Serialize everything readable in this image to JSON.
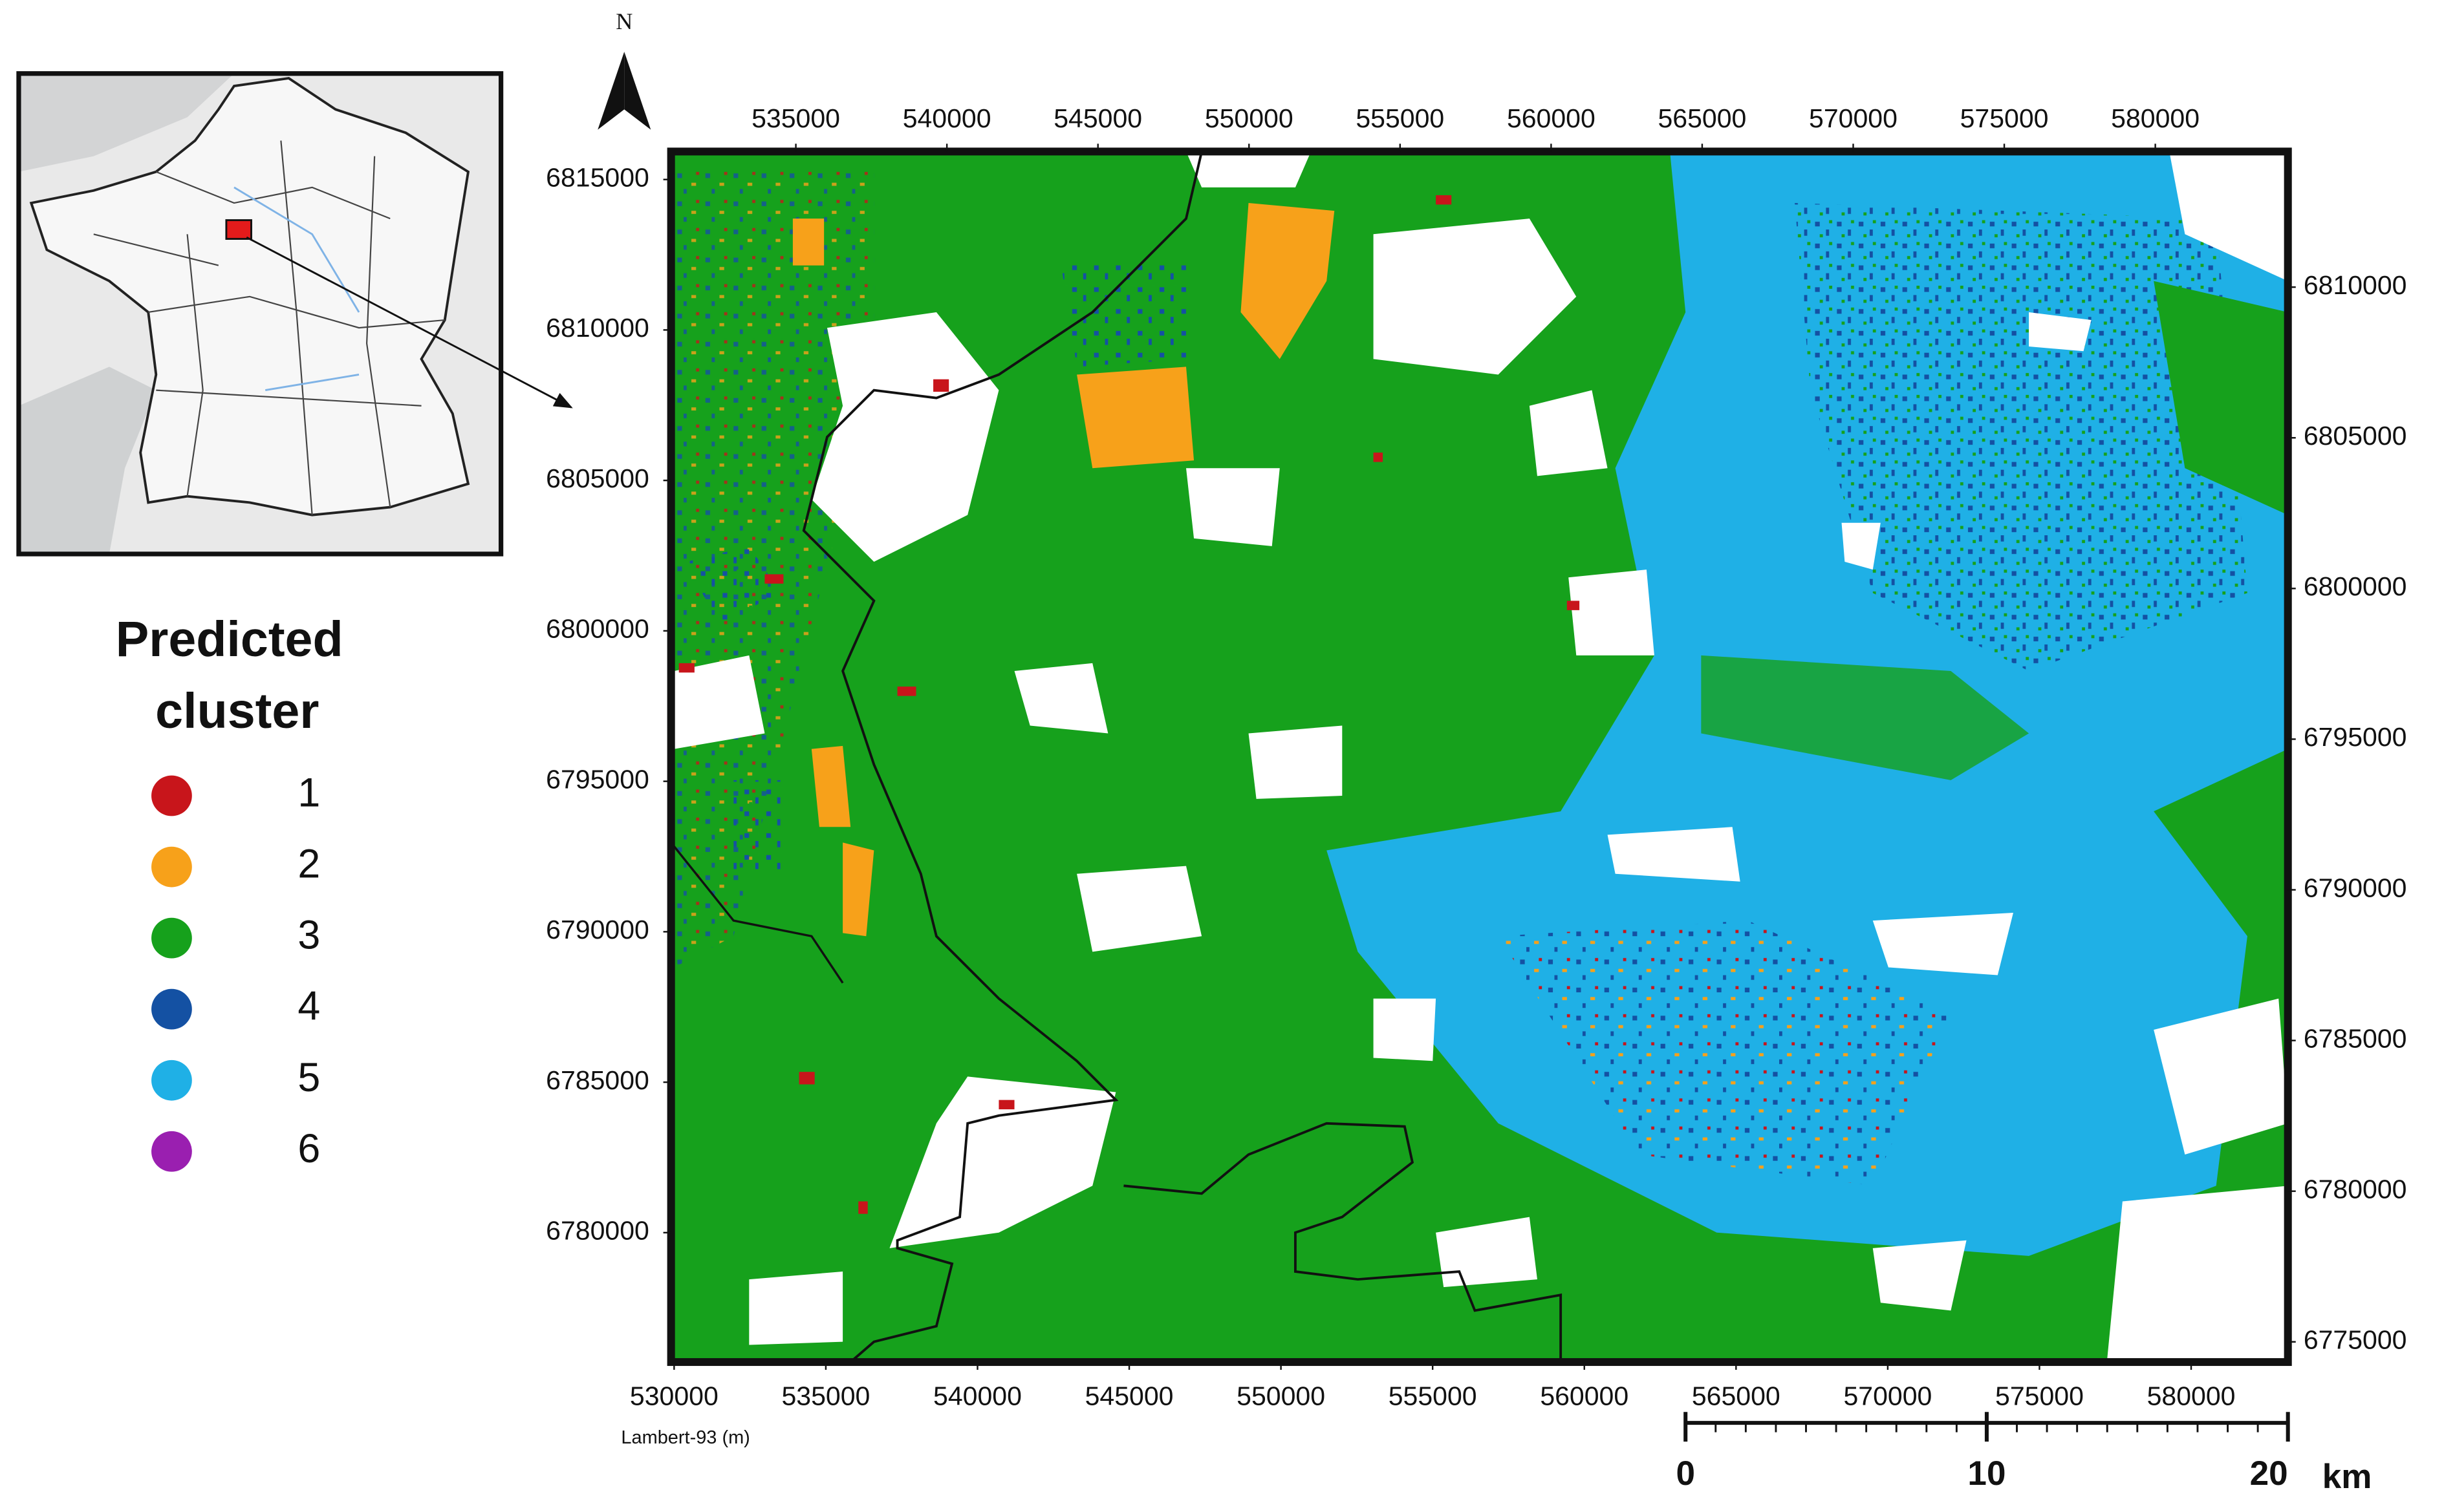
{
  "map": {
    "north_label": "N",
    "axis_label": "Lambert-93 (m)",
    "axes": {
      "top": {
        "lim": [
          530870,
          584390
        ],
        "ticks": [
          535000,
          540000,
          545000,
          550000,
          555000,
          560000,
          565000,
          570000,
          575000,
          580000
        ]
      },
      "bottom": {
        "lim": [
          529900,
          583190
        ],
        "ticks": [
          530000,
          535000,
          540000,
          545000,
          550000,
          555000,
          560000,
          565000,
          570000,
          575000,
          580000
        ]
      },
      "left": {
        "lim": [
          6775700,
          6815930
        ],
        "ticks": [
          6780000,
          6785000,
          6790000,
          6795000,
          6800000,
          6805000,
          6810000,
          6815000
        ]
      },
      "right": {
        "lim": [
          6774330,
          6814500
        ],
        "ticks": [
          6775000,
          6780000,
          6785000,
          6790000,
          6795000,
          6800000,
          6805000,
          6810000
        ]
      }
    },
    "legend": {
      "title": [
        "Predicted",
        "cluster"
      ],
      "items": [
        {
          "label": "1",
          "color": "#c8151b"
        },
        {
          "label": "2",
          "color": "#f7a11a"
        },
        {
          "label": "3",
          "color": "#16a11c"
        },
        {
          "label": "4",
          "color": "#1451a3"
        },
        {
          "label": "5",
          "color": "#1fb0e6"
        },
        {
          "label": "6",
          "color": "#9a1fb0"
        }
      ]
    },
    "scale_bar": {
      "lim": [
        0,
        20
      ],
      "ticks": [
        0,
        10,
        20
      ],
      "unit": "km"
    }
  }
}
